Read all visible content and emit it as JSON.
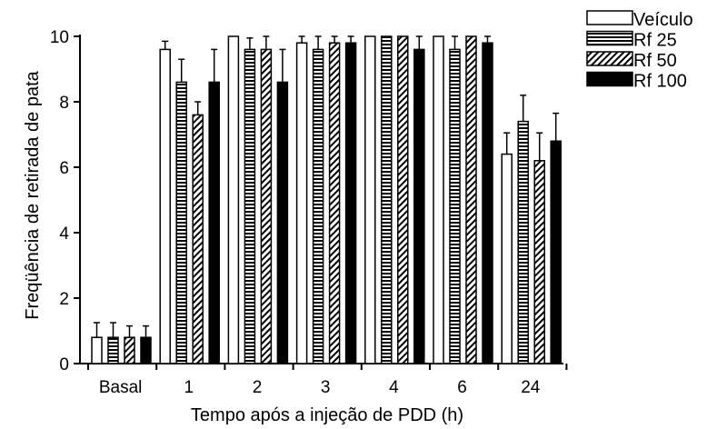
{
  "chart_data": {
    "type": "bar",
    "title": "",
    "xlabel": "Tempo após a injeção de PDD (h)",
    "ylabel": "Freqüência de retirada de pata",
    "ylim": [
      0,
      10
    ],
    "yticks": [
      "0",
      "2",
      "4",
      "6",
      "8",
      "10"
    ],
    "categories": [
      "Basal",
      "1",
      "2",
      "3",
      "4",
      "6",
      "24"
    ],
    "grid": false,
    "legend_position": "top-right",
    "series": [
      {
        "name": "Veículo",
        "fill": "white",
        "values": [
          0.8,
          9.6,
          10.0,
          9.8,
          10.0,
          10.0,
          6.4
        ],
        "errors": [
          0.45,
          0.25,
          0.0,
          0.2,
          0.0,
          0.0,
          0.65
        ]
      },
      {
        "name": "Rf 25",
        "fill": "horizontal-stripes",
        "values": [
          0.8,
          8.6,
          9.6,
          9.6,
          10.0,
          9.6,
          7.4
        ],
        "errors": [
          0.45,
          0.7,
          0.35,
          0.4,
          0.0,
          0.4,
          0.8
        ]
      },
      {
        "name": "Rf 50",
        "fill": "diagonal-hatch",
        "values": [
          0.8,
          7.6,
          9.6,
          9.8,
          10.0,
          10.0,
          6.2
        ],
        "errors": [
          0.35,
          0.4,
          0.4,
          0.2,
          0.0,
          0.0,
          0.85
        ]
      },
      {
        "name": "Rf 100",
        "fill": "black",
        "values": [
          0.8,
          8.6,
          8.6,
          9.8,
          9.6,
          9.8,
          6.8
        ],
        "errors": [
          0.35,
          1.0,
          1.0,
          0.2,
          0.4,
          0.2,
          0.85
        ]
      }
    ]
  },
  "colors": {
    "ink": "#000000",
    "background": "#ffffff"
  }
}
